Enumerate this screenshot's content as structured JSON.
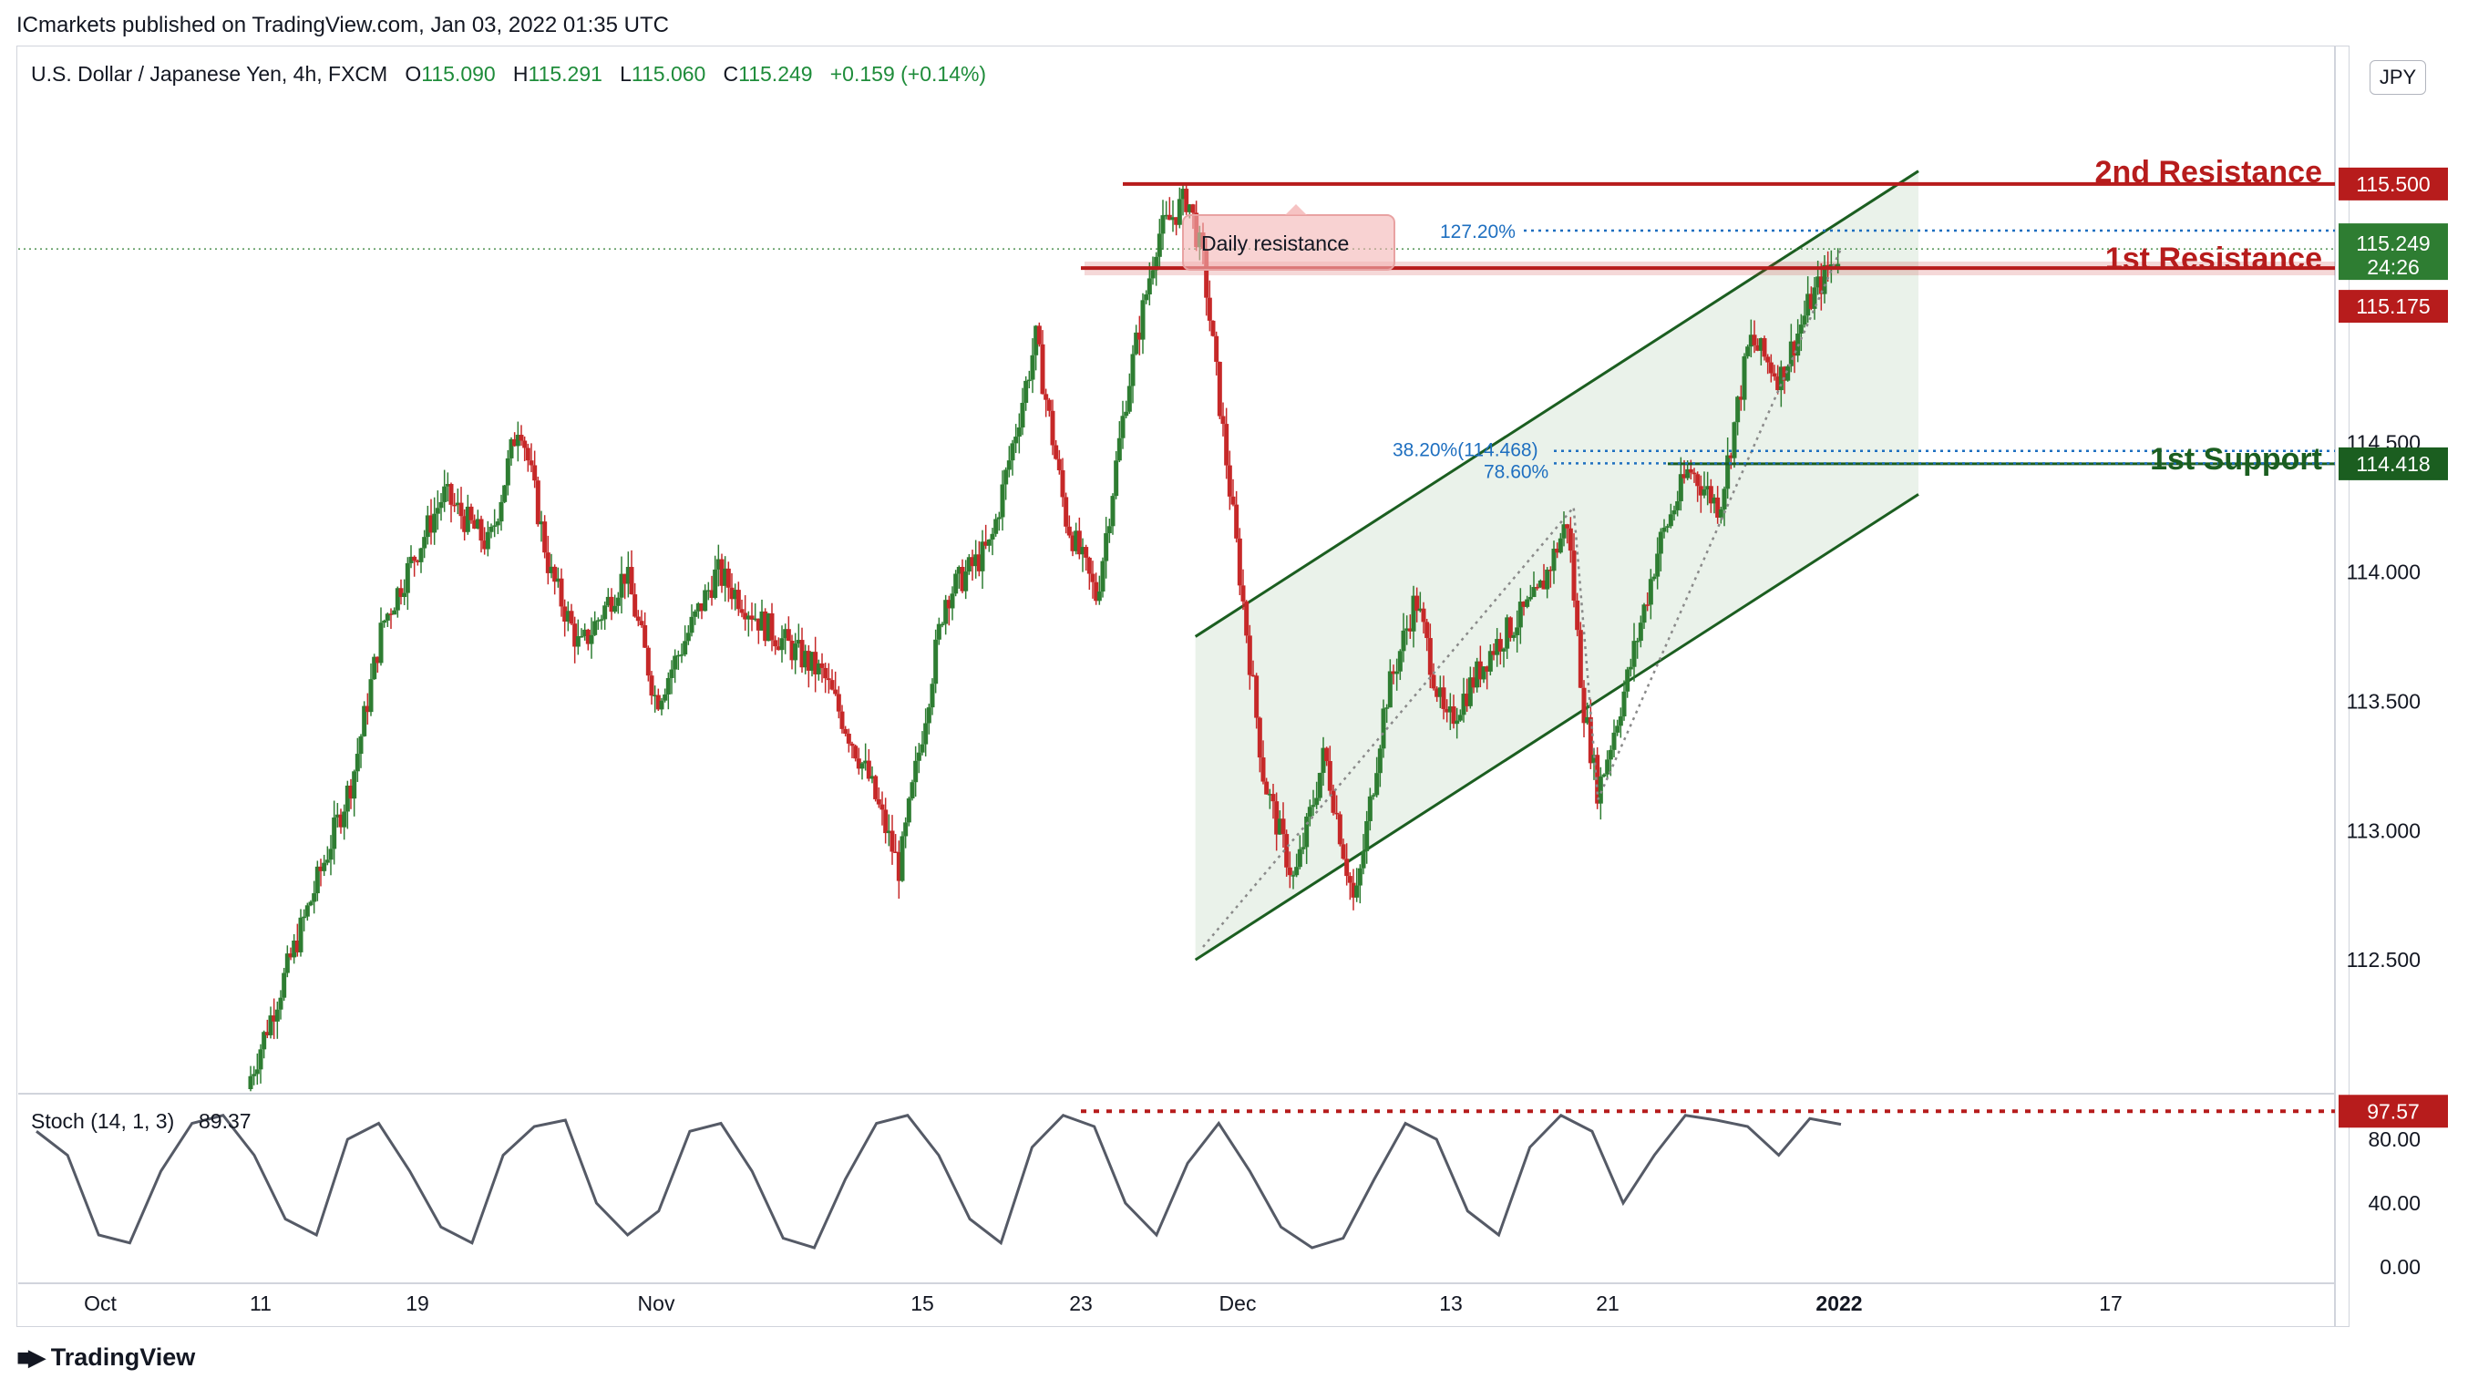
{
  "publisher": "ICmarkets published on TradingView.com, Jan 03, 2022 01:35 UTC",
  "symbol": {
    "name": "U.S. Dollar / Japanese Yen, 4h, FXCM",
    "open_label": "O",
    "open": "115.090",
    "high_label": "H",
    "high": "115.291",
    "low_label": "L",
    "low": "115.060",
    "close_label": "C",
    "close": "115.249",
    "change": "+0.159 (+0.14%)"
  },
  "currency": "JPY",
  "footer_brand": "TradingView",
  "colors": {
    "up": "#2e7d32",
    "down": "#c62828",
    "resistance": "#b71c1c",
    "support": "#1b5e20",
    "channel": "#1b5e20",
    "fib": "#1e6fc0",
    "stoch": "#555a66"
  },
  "chart_data": {
    "type": "candlestick",
    "price_axis": {
      "ylim": [
        112.0,
        116.0
      ],
      "ticks": [
        "112.500",
        "113.000",
        "113.500",
        "114.000",
        "114.500",
        "115.500"
      ]
    },
    "time_axis": {
      "ticks": [
        "Oct",
        "11",
        "19",
        "Nov",
        "15",
        "23",
        "Dec",
        "13",
        "21",
        "2022",
        "17"
      ]
    },
    "ohlc_path": [
      {
        "t": 0.0,
        "p": 112.0
      },
      {
        "t": 7,
        "p": 113.2
      },
      {
        "t": 9,
        "p": 113.8
      },
      {
        "t": 13,
        "p": 114.3
      },
      {
        "t": 16,
        "p": 114.1
      },
      {
        "t": 18,
        "p": 114.6
      },
      {
        "t": 20,
        "p": 114.0
      },
      {
        "t": 22,
        "p": 113.7
      },
      {
        "t": 25,
        "p": 114.0
      },
      {
        "t": 27,
        "p": 113.5
      },
      {
        "t": 31,
        "p": 114.0
      },
      {
        "t": 34,
        "p": 113.8
      },
      {
        "t": 38,
        "p": 113.6
      },
      {
        "t": 41,
        "p": 113.2
      },
      {
        "t": 43,
        "p": 112.85
      },
      {
        "t": 46,
        "p": 113.9
      },
      {
        "t": 49,
        "p": 114.1
      },
      {
        "t": 52,
        "p": 114.9
      },
      {
        "t": 54,
        "p": 114.2
      },
      {
        "t": 56,
        "p": 113.9
      },
      {
        "t": 58,
        "p": 114.7
      },
      {
        "t": 60,
        "p": 115.3
      },
      {
        "t": 62,
        "p": 115.45
      },
      {
        "t": 63,
        "p": 115.2
      },
      {
        "t": 65,
        "p": 114.2
      },
      {
        "t": 67,
        "p": 113.2
      },
      {
        "t": 69,
        "p": 112.8
      },
      {
        "t": 71,
        "p": 113.3
      },
      {
        "t": 73,
        "p": 112.7
      },
      {
        "t": 75,
        "p": 113.5
      },
      {
        "t": 77,
        "p": 113.9
      },
      {
        "t": 79,
        "p": 113.4
      },
      {
        "t": 82,
        "p": 113.7
      },
      {
        "t": 85,
        "p": 113.9
      },
      {
        "t": 87,
        "p": 114.2
      },
      {
        "t": 88,
        "p": 113.5
      },
      {
        "t": 89,
        "p": 113.15
      },
      {
        "t": 91,
        "p": 113.6
      },
      {
        "t": 93,
        "p": 114.1
      },
      {
        "t": 95,
        "p": 114.4
      },
      {
        "t": 97,
        "p": 114.25
      },
      {
        "t": 99,
        "p": 114.9
      },
      {
        "t": 101,
        "p": 114.75
      },
      {
        "t": 103,
        "p": 115.05
      },
      {
        "t": 105,
        "p": 115.25
      }
    ],
    "stochastic": {
      "label": "Stoch (14, 1, 3)",
      "value": "89.37",
      "ylim": [
        0,
        100
      ],
      "ticks": [
        "0.00",
        "40.00",
        "80.00"
      ],
      "overbought_tag": "97.57",
      "overbought": 97.57,
      "series": [
        85,
        70,
        20,
        15,
        60,
        90,
        95,
        70,
        30,
        20,
        80,
        90,
        60,
        25,
        15,
        70,
        88,
        92,
        40,
        20,
        35,
        85,
        90,
        60,
        18,
        12,
        55,
        90,
        95,
        70,
        30,
        15,
        75,
        95,
        88,
        40,
        20,
        65,
        90,
        60,
        25,
        12,
        18,
        55,
        90,
        80,
        35,
        20,
        75,
        95,
        85,
        40,
        70,
        95,
        92,
        88,
        70,
        93,
        89.37
      ]
    },
    "levels": [
      {
        "name": "2nd Resistance",
        "price": 115.5,
        "tag": "115.500"
      },
      {
        "name": "1st Resistance",
        "price": 115.175,
        "tag": "115.175"
      },
      {
        "name": "1st Support",
        "price": 114.418,
        "tag": "114.418"
      }
    ],
    "last_price": {
      "tag": "115.249",
      "countdown": "24:26",
      "price": 115.249
    },
    "annotations": {
      "daily_resistance": "Daily resistance",
      "fib_1272": "127.20%",
      "fib_382": "38.20%(114.468)",
      "fib_786": "78.60%"
    }
  }
}
